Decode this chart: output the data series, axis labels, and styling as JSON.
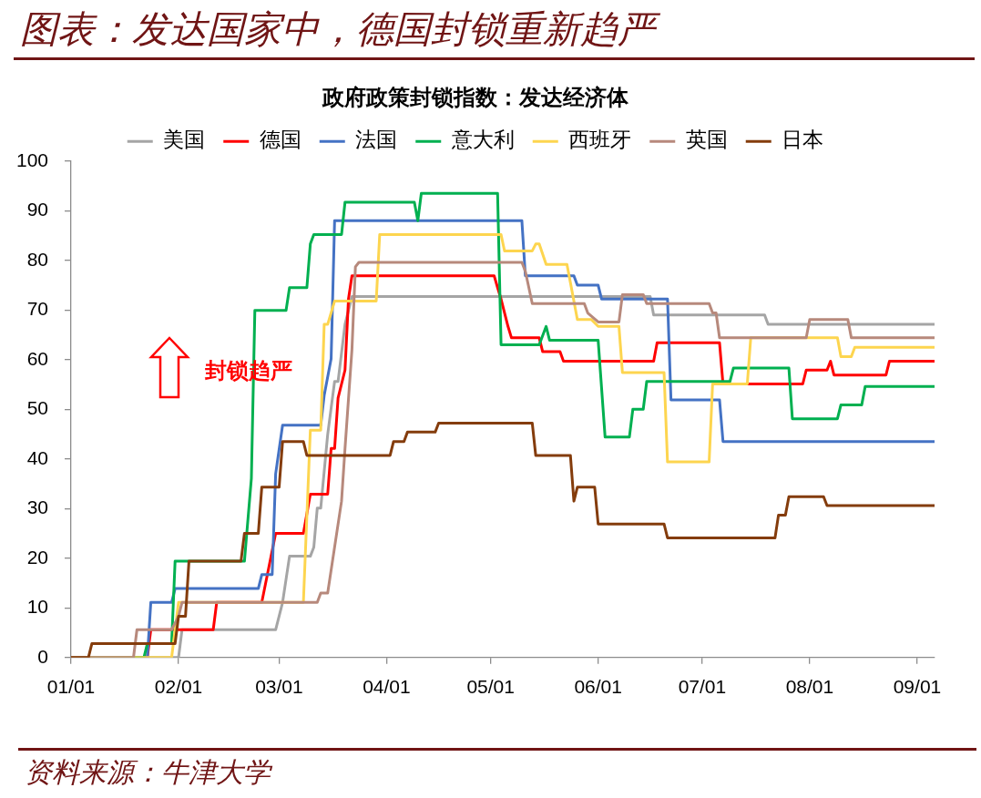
{
  "chart_data": {
    "type": "line",
    "title": "图表：发达国家中，德国封锁重新趋严",
    "subtitle": "政府政策封锁指数：发达经济体",
    "annotations": [
      "封锁趋严",
      "资料来源：牛津大学"
    ],
    "legend": "top",
    "marker": "none",
    "line_style": "solid",
    "xlim": [
      "--01-01",
      "--09-06"
    ],
    "xticks": [
      {
        "value": "--01-01",
        "label": "01/01"
      },
      {
        "value": "--02-01",
        "label": "02/01"
      },
      {
        "value": "--03-01",
        "label": "03/01"
      },
      {
        "value": "--04-01",
        "label": "04/01"
      },
      {
        "value": "--05-01",
        "label": "05/01"
      },
      {
        "value": "--06-01",
        "label": "06/01"
      },
      {
        "value": "--07-01",
        "label": "07/01"
      },
      {
        "value": "--08-01",
        "label": "08/01"
      },
      {
        "value": "--09-01",
        "label": "09/01"
      }
    ],
    "ylim": [
      0,
      100
    ],
    "yticks": [
      0,
      10,
      20,
      30,
      40,
      50,
      60,
      70,
      80,
      90,
      100
    ],
    "series": [
      {
        "name": "美国",
        "color": "#a5a5a5",
        "x": [
          "--01-01",
          "--02-01",
          "--02-02",
          "--02-29",
          "--03-02",
          "--03-04",
          "--03-10",
          "--03-11",
          "--03-12",
          "--03-13",
          "--03-15",
          "--03-17",
          "--03-18",
          "--03-20",
          "--03-22",
          "--06-16",
          "--06-17",
          "--07-19",
          "--07-20",
          "--09-06"
        ],
        "values": [
          0,
          0,
          5.6,
          5.6,
          11.1,
          20.4,
          20.4,
          22.2,
          30.1,
          30.1,
          44.9,
          55.6,
          55.6,
          67.1,
          72.7,
          72.7,
          69,
          69,
          67.1,
          67.1
        ]
      },
      {
        "name": "德国",
        "color": "#ff0000",
        "x": [
          "--01-01",
          "--01-23",
          "--01-24",
          "--02-11",
          "--02-12",
          "--02-25",
          "--02-29",
          "--03-08",
          "--03-10",
          "--03-15",
          "--03-16",
          "--03-17",
          "--03-18",
          "--03-20",
          "--03-21",
          "--03-22",
          "--05-02",
          "--05-03",
          "--05-04",
          "--05-06",
          "--05-07",
          "--05-15",
          "--05-16",
          "--05-21",
          "--05-22",
          "--06-17",
          "--06-18",
          "--07-06",
          "--07-07",
          "--07-30",
          "--07-31",
          "--08-06",
          "--08-07",
          "--08-08",
          "--08-23",
          "--08-24",
          "--09-06"
        ],
        "values": [
          0,
          0,
          5.6,
          5.6,
          11.1,
          11.1,
          25,
          25,
          32.9,
          32.9,
          42.1,
          42.1,
          52.3,
          57.9,
          72.2,
          76.9,
          76.9,
          74.5,
          72.2,
          66.7,
          64.4,
          64.4,
          61.6,
          61.6,
          59.7,
          59.7,
          63.4,
          63.4,
          55.1,
          55.1,
          57.9,
          57.9,
          59.7,
          56.9,
          56.9,
          59.7,
          59.7
        ]
      },
      {
        "name": "法国",
        "color": "#4472c4",
        "x": [
          "--01-01",
          "--01-23",
          "--01-24",
          "--01-30",
          "--01-31",
          "--02-24",
          "--02-25",
          "--02-28",
          "--02-29",
          "--03-02",
          "--03-13",
          "--03-14",
          "--03-16",
          "--03-17",
          "--05-10",
          "--05-11",
          "--05-25",
          "--05-26",
          "--06-01",
          "--06-02",
          "--06-21",
          "--06-22",
          "--07-06",
          "--07-07",
          "--09-06"
        ],
        "values": [
          0,
          0,
          11.1,
          11.1,
          13.9,
          13.9,
          16.7,
          16.7,
          37,
          46.8,
          46.8,
          52.8,
          60.2,
          88,
          88,
          76.9,
          76.9,
          75,
          75,
          72.2,
          72.2,
          51.9,
          51.9,
          43.5,
          43.5
        ]
      },
      {
        "name": "意大利",
        "color": "#00b050",
        "x": [
          "--01-01",
          "--01-22",
          "--01-23",
          "--01-30",
          "--01-31",
          "--02-20",
          "--02-22",
          "--02-23",
          "--03-03",
          "--03-04",
          "--03-09",
          "--03-10",
          "--03-11",
          "--03-19",
          "--03-20",
          "--04-09",
          "--04-10",
          "--04-11",
          "--05-03",
          "--05-04",
          "--05-15",
          "--05-17",
          "--05-18",
          "--06-01",
          "--06-03",
          "--06-10",
          "--06-11",
          "--06-14",
          "--06-15",
          "--07-09",
          "--07-10",
          "--07-26",
          "--07-27",
          "--08-09",
          "--08-10",
          "--08-16",
          "--08-17",
          "--09-06"
        ],
        "values": [
          0,
          0,
          2.8,
          2.8,
          19.4,
          19.4,
          36.1,
          69.9,
          69.9,
          74.5,
          74.5,
          83.3,
          85.2,
          85.2,
          91.7,
          91.7,
          88,
          93.5,
          93.5,
          63,
          63,
          66.7,
          63.9,
          63.9,
          44.4,
          44.4,
          50,
          50,
          55.6,
          55.6,
          58.3,
          58.3,
          48.1,
          48.1,
          50.9,
          50.9,
          54.6,
          54.6
        ]
      },
      {
        "name": "西班牙",
        "color": "#fdd54f",
        "x": [
          "--01-01",
          "--01-30",
          "--02-01",
          "--03-08",
          "--03-10",
          "--03-13",
          "--03-14",
          "--03-15",
          "--03-17",
          "--03-29",
          "--03-30",
          "--05-04",
          "--05-05",
          "--05-13",
          "--05-14",
          "--05-15",
          "--05-17",
          "--05-23",
          "--05-24",
          "--05-26",
          "--05-30",
          "--06-01",
          "--06-07",
          "--06-08",
          "--06-20",
          "--06-21",
          "--07-03",
          "--07-04",
          "--07-14",
          "--07-15",
          "--08-09",
          "--08-10",
          "--08-13",
          "--08-14",
          "--09-06"
        ],
        "values": [
          0,
          0,
          11.1,
          11.1,
          45.8,
          45.8,
          67.1,
          67.1,
          71.8,
          71.8,
          85.2,
          85.2,
          81.9,
          81.9,
          83.3,
          83.3,
          79.2,
          79.2,
          75.5,
          68.1,
          68.1,
          66.7,
          66.7,
          57.4,
          57.4,
          39.4,
          39.4,
          55.1,
          55.1,
          64.4,
          64.4,
          60.6,
          60.6,
          62.5,
          62.5
        ]
      },
      {
        "name": "英国",
        "color": "#b7897c",
        "x": [
          "--01-01",
          "--01-19",
          "--01-20",
          "--01-30",
          "--02-01",
          "--02-02",
          "--03-12",
          "--03-13",
          "--03-15",
          "--03-19",
          "--03-20",
          "--03-22",
          "--03-23",
          "--03-24",
          "--05-10",
          "--05-11",
          "--05-13",
          "--05-28",
          "--05-29",
          "--06-01",
          "--06-07",
          "--06-08",
          "--06-14",
          "--06-15",
          "--07-03",
          "--07-04",
          "--07-05",
          "--07-06",
          "--07-31",
          "--08-01",
          "--08-12",
          "--08-13",
          "--09-06"
        ],
        "values": [
          0,
          0,
          5.6,
          5.6,
          8.3,
          11.1,
          11.1,
          13,
          13,
          31.5,
          42.1,
          62,
          78.7,
          79.6,
          79.6,
          77.8,
          71.3,
          71.3,
          69.4,
          67.6,
          67.6,
          73.1,
          73.1,
          71.3,
          71.3,
          69.4,
          69.4,
          64.4,
          64.4,
          68.1,
          68.1,
          64.4,
          64.4
        ]
      },
      {
        "name": "日本",
        "color": "#843c0c",
        "x": [
          "--01-01",
          "--01-06",
          "--01-07",
          "--01-31",
          "--02-01",
          "--02-03",
          "--02-04",
          "--02-19",
          "--02-20",
          "--02-24",
          "--02-25",
          "--03-01",
          "--03-02",
          "--03-08",
          "--03-09",
          "--04-02",
          "--04-03",
          "--04-06",
          "--04-07",
          "--04-15",
          "--04-16",
          "--05-13",
          "--05-14",
          "--05-24",
          "--05-25",
          "--05-26",
          "--05-31",
          "--06-01",
          "--06-20",
          "--06-21",
          "--07-22",
          "--07-23",
          "--07-25",
          "--07-26",
          "--08-05",
          "--08-06",
          "--09-06"
        ],
        "values": [
          0,
          0,
          2.8,
          2.8,
          8.3,
          8.3,
          19.4,
          19.4,
          25,
          25,
          34.3,
          34.3,
          43.5,
          43.5,
          40.7,
          40.7,
          43.5,
          43.5,
          45.4,
          45.4,
          47.2,
          47.2,
          40.7,
          40.7,
          31.5,
          34.3,
          34.3,
          26.9,
          26.9,
          24.1,
          24.1,
          28.7,
          28.7,
          32.4,
          32.4,
          30.6,
          30.6
        ]
      }
    ]
  }
}
